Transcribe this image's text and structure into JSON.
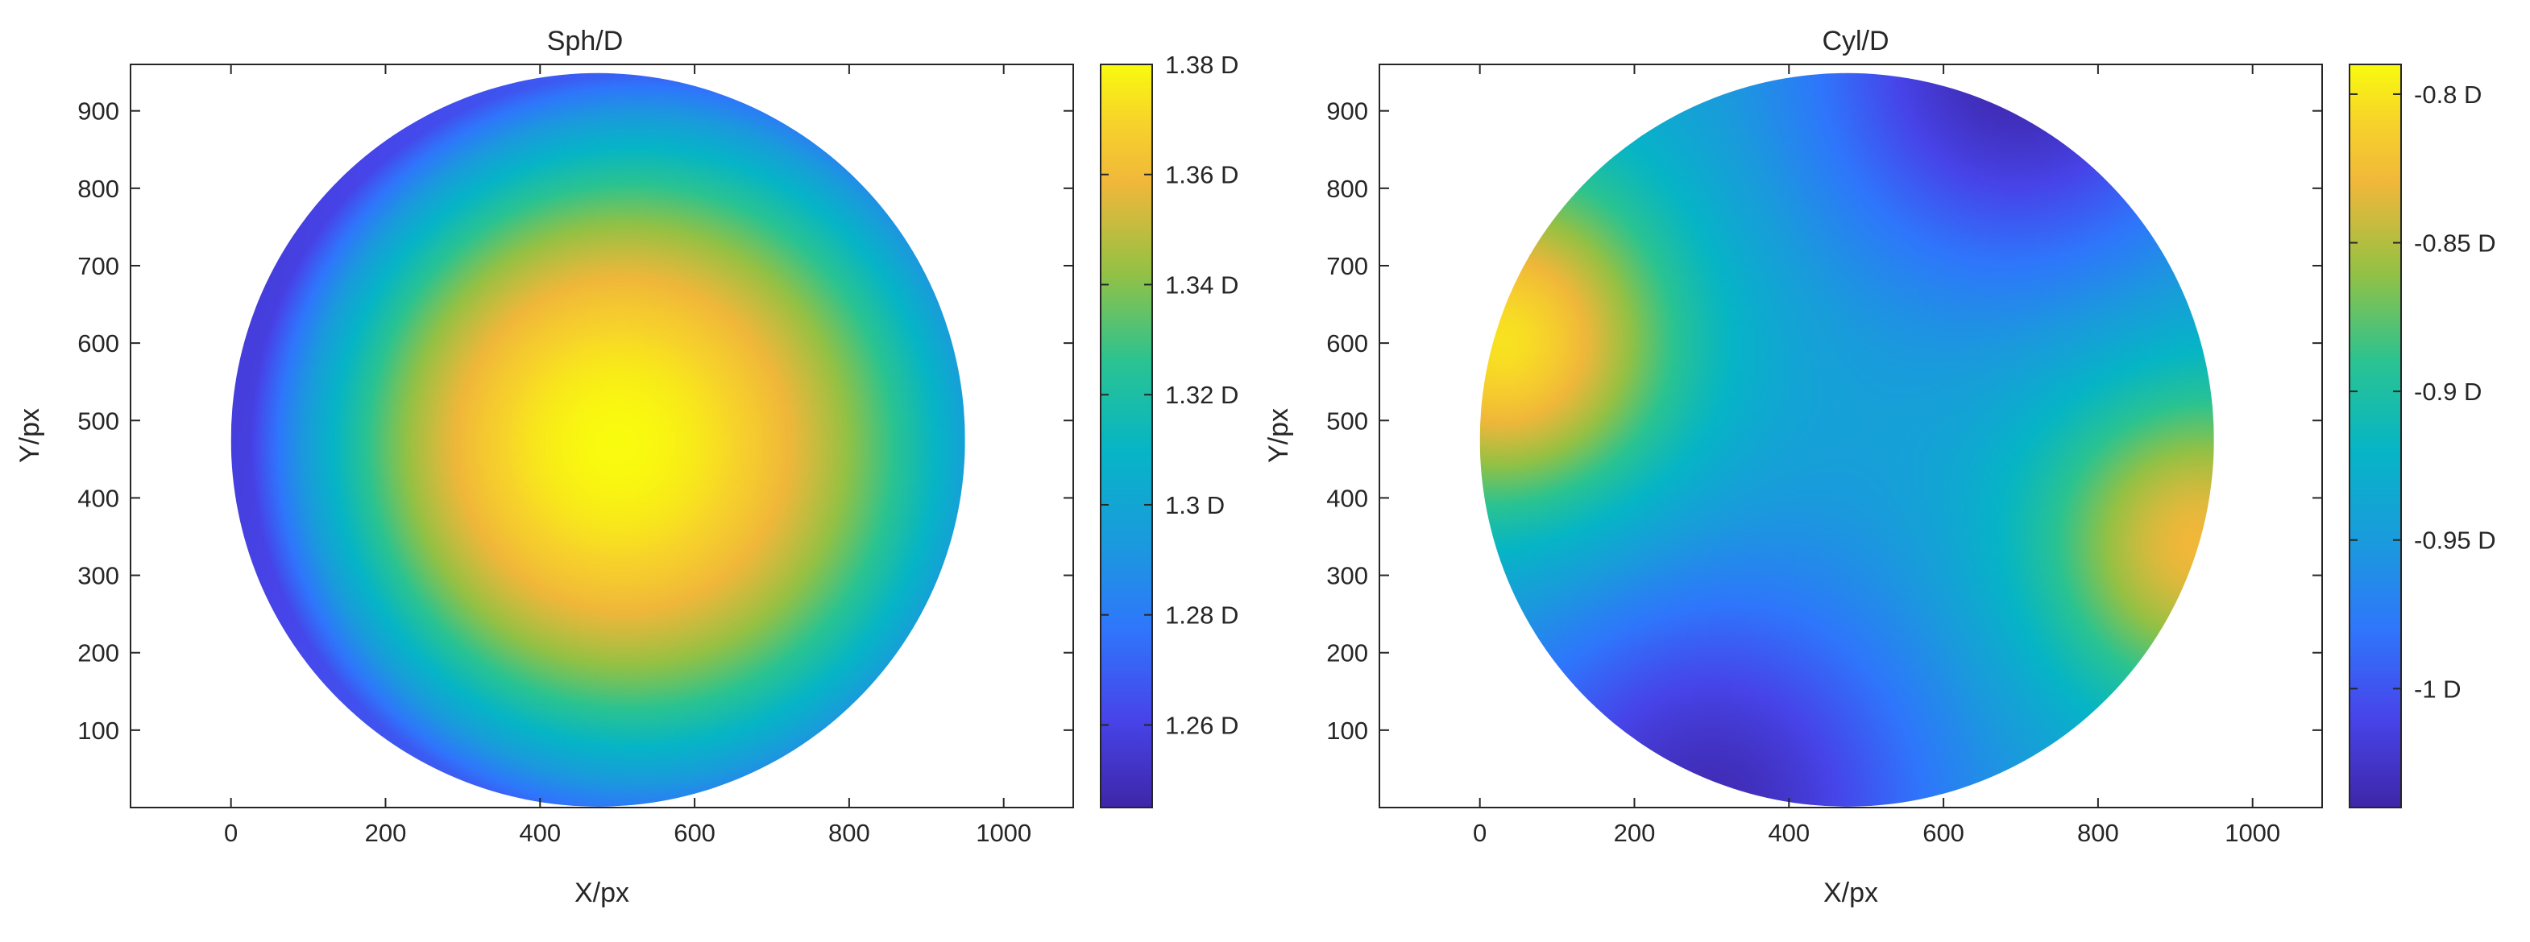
{
  "chart_data": [
    {
      "type": "heatmap",
      "title": "Sph/D",
      "xlabel": "X/px",
      "ylabel": "Y/px",
      "xlim": [
        -130,
        1090
      ],
      "ylim": [
        0,
        960
      ],
      "x_ticks": [
        0,
        200,
        400,
        600,
        800,
        1000
      ],
      "y_ticks": [
        100,
        200,
        300,
        400,
        500,
        600,
        700,
        800,
        900
      ],
      "aperture": {
        "cx": 475,
        "cy": 475,
        "r": 475
      },
      "colorbar": {
        "min": 1.245,
        "max": 1.38,
        "ticks": [
          1.26,
          1.28,
          1.3,
          1.32,
          1.34,
          1.36,
          1.38
        ],
        "tick_labels": [
          "1.26 D",
          "1.28 D",
          "1.3 D",
          "1.32 D",
          "1.34 D",
          "1.36 D",
          "1.38 D"
        ]
      },
      "field": {
        "model": "radial",
        "center_x": 500,
        "center_y": 470,
        "center_value": 1.38,
        "edge_value": 1.262,
        "tilt": [
          {
            "x": 0,
            "y": 475,
            "value": 1.255
          },
          {
            "x": 950,
            "y": 475,
            "value": 1.285
          },
          {
            "x": 475,
            "y": 950,
            "value": 1.262
          },
          {
            "x": 475,
            "y": 0,
            "value": 1.268
          }
        ]
      }
    },
    {
      "type": "heatmap",
      "title": "Cyl/D",
      "xlabel": "X/px",
      "ylabel": "Y/px",
      "xlim": [
        -130,
        1090
      ],
      "ylim": [
        0,
        960
      ],
      "x_ticks": [
        0,
        200,
        400,
        600,
        800,
        1000
      ],
      "y_ticks": [
        100,
        200,
        300,
        400,
        500,
        600,
        700,
        800,
        900
      ],
      "aperture": {
        "cx": 475,
        "cy": 475,
        "r": 475
      },
      "colorbar": {
        "min": -1.04,
        "max": -0.79,
        "ticks": [
          -1.0,
          -0.95,
          -0.9,
          -0.85,
          -0.8
        ],
        "tick_labels": [
          "-1 D",
          "-0.95 D",
          "-0.9 D",
          "-0.85 D",
          "-0.8 D"
        ]
      },
      "field": {
        "model": "saddle",
        "base_value": -0.94,
        "features": [
          {
            "x": 30,
            "y": 600,
            "value": -0.8,
            "sigma": 160
          },
          {
            "x": 930,
            "y": 340,
            "value": -0.83,
            "sigma": 150
          },
          {
            "x": 700,
            "y": 960,
            "value": -1.04,
            "sigma": 200
          },
          {
            "x": 300,
            "y": 0,
            "value": -1.03,
            "sigma": 210
          }
        ]
      }
    }
  ]
}
